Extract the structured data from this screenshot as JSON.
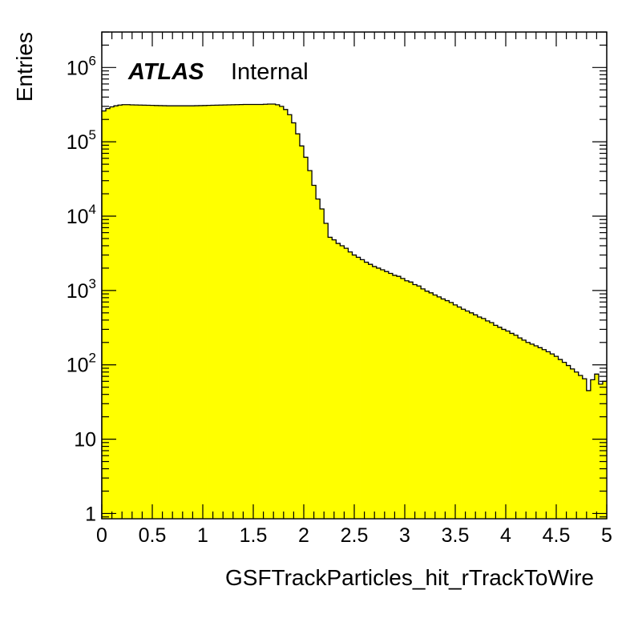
{
  "chart_data": {
    "type": "bar",
    "histogram": true,
    "title": "",
    "annotation": {
      "brand": "ATLAS",
      "status": "Internal"
    },
    "xlabel": "GSFTrackParticles_hit_rTrackToWire",
    "ylabel": "Entries",
    "xlim": [
      0,
      5
    ],
    "ylim": [
      0.85,
      3000000
    ],
    "yscale": "log",
    "x_ticks": [
      0,
      0.5,
      1,
      1.5,
      2,
      2.5,
      3,
      3.5,
      4,
      4.5,
      5
    ],
    "x_tick_labels": [
      "0",
      "0.5",
      "1",
      "1.5",
      "2",
      "2.5",
      "3",
      "3.5",
      "4",
      "4.5",
      "5"
    ],
    "y_ticks": [
      1,
      10,
      100,
      1000,
      10000,
      100000,
      1000000
    ],
    "y_tick_labels": [
      {
        "base": "1",
        "exp": ""
      },
      {
        "base": "10",
        "exp": ""
      },
      {
        "base": "10",
        "exp": "2"
      },
      {
        "base": "10",
        "exp": "3"
      },
      {
        "base": "10",
        "exp": "4"
      },
      {
        "base": "10",
        "exp": "5"
      },
      {
        "base": "10",
        "exp": "6"
      }
    ],
    "grid": false,
    "fill_color": "#ffff00",
    "line_color": "#000000",
    "bin_width": 0.04,
    "bin_low_edges": [
      0,
      0.04,
      0.08,
      0.12,
      0.16,
      0.2,
      0.24,
      0.28,
      0.32,
      0.36,
      0.4,
      0.44,
      0.48,
      0.52,
      0.56,
      0.6,
      0.64,
      0.68,
      0.72,
      0.76,
      0.8,
      0.84,
      0.88,
      0.92,
      0.96,
      1,
      1.04,
      1.08,
      1.12,
      1.16,
      1.2,
      1.24,
      1.28,
      1.32,
      1.36,
      1.4,
      1.44,
      1.48,
      1.52,
      1.56,
      1.6,
      1.64,
      1.68,
      1.72,
      1.76,
      1.8,
      1.84,
      1.88,
      1.92,
      1.96,
      2,
      2.04,
      2.08,
      2.12,
      2.16,
      2.2,
      2.24,
      2.28,
      2.32,
      2.36,
      2.4,
      2.44,
      2.48,
      2.52,
      2.56,
      2.6,
      2.64,
      2.68,
      2.72,
      2.76,
      2.8,
      2.84,
      2.88,
      2.92,
      2.96,
      3,
      3.04,
      3.08,
      3.12,
      3.16,
      3.2,
      3.24,
      3.28,
      3.32,
      3.36,
      3.4,
      3.44,
      3.48,
      3.52,
      3.56,
      3.6,
      3.64,
      3.68,
      3.72,
      3.76,
      3.8,
      3.84,
      3.88,
      3.92,
      3.96,
      4,
      4.04,
      4.08,
      4.12,
      4.16,
      4.2,
      4.24,
      4.28,
      4.32,
      4.36,
      4.4,
      4.44,
      4.48,
      4.52,
      4.56,
      4.6,
      4.64,
      4.68,
      4.72,
      4.76,
      4.8,
      4.84,
      4.88,
      4.92,
      4.96
    ],
    "values": [
      260000,
      280000,
      295000,
      305000,
      312000,
      316000,
      316000,
      314000,
      313000,
      312000,
      311000,
      310000,
      309000,
      308000,
      307000,
      306000,
      305000,
      305000,
      305000,
      305000,
      305000,
      305000,
      305000,
      306000,
      307000,
      308000,
      309000,
      310000,
      311000,
      312000,
      313000,
      314000,
      315000,
      316000,
      317000,
      318000,
      318000,
      318000,
      318000,
      318000,
      320000,
      322000,
      322000,
      315000,
      300000,
      272000,
      232000,
      180000,
      128000,
      88000,
      62000,
      41000,
      26000,
      17000,
      12500,
      8000,
      5200,
      4800,
      4300,
      4000,
      3700,
      3300,
      3000,
      2800,
      2600,
      2400,
      2250,
      2100,
      2000,
      1900,
      1800,
      1700,
      1600,
      1550,
      1450,
      1350,
      1300,
      1200,
      1150,
      1050,
      980,
      930,
      870,
      820,
      770,
      730,
      690,
      640,
      600,
      560,
      530,
      500,
      470,
      440,
      420,
      390,
      370,
      340,
      320,
      300,
      285,
      265,
      250,
      230,
      215,
      200,
      190,
      180,
      170,
      160,
      150,
      140,
      130,
      118,
      108,
      98,
      88,
      80,
      72,
      65,
      45,
      63,
      75,
      55,
      60
    ]
  }
}
